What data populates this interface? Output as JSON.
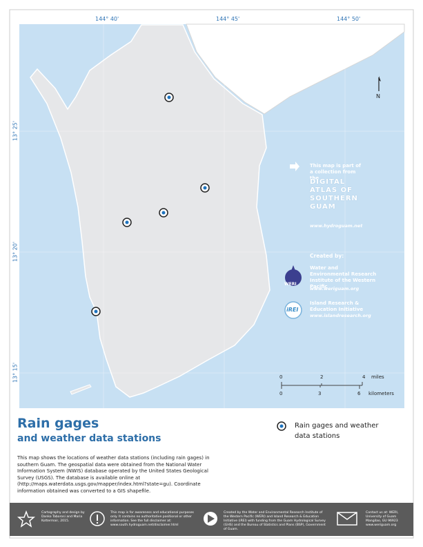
{
  "map": {
    "top_labels": [
      "144° 40'",
      "144° 45'",
      "144° 50'"
    ],
    "left_labels": [
      "13° 25'",
      "13° 20'",
      "13° 15'"
    ],
    "north": "N"
  },
  "collection": {
    "intro": "This map is part of a collection from the",
    "atlas_lines": [
      "DIGITAL",
      "ATLAS OF",
      "SOUTHERN",
      "GUAM"
    ],
    "url": "www.hydroguam.net"
  },
  "credits": {
    "heading": "Created by:",
    "orgs": [
      {
        "logo": "WERI",
        "name": "Water and Environmental Research Institute of the Western Pacific",
        "url": "www.weriguam.org"
      },
      {
        "logo": "iREI",
        "name": "Island Research & Education Initiative",
        "url": "www.islandresearch.org"
      }
    ]
  },
  "scale": {
    "miles": [
      "0",
      "2",
      "4"
    ],
    "miles_unit": "miles",
    "km": [
      "0",
      "3",
      "6"
    ],
    "km_unit": "kilometers"
  },
  "title": "Rain gages",
  "subtitle": "and weather data stations",
  "legend": "Rain gages and weather data stations",
  "description": "This map shows the locations of weather data stations (including rain gages) in southern Guam. The geospatial data were obtained from the National Water Information System (NWIS) database operated by the United States Geological Survey (USGS). The database is available online at (http://maps.waterdata.usgs.gov/mapper/index.html?state=gu). Coordinate information obtained was converted to a GIS shapefile.",
  "footer": [
    "Cartography and design by Danko Taborosi and Maria Kottermair, 2015.",
    "This map is for awareness and educational purposes only. It contains no authoritative positional or other information. See the full disclaimer at: www.south.hydroguam.net/disclaimer.html",
    "Created by the Water and Environmental Research Institute of the Western Pacific (WERI) and Island Research & Education Initiative (iREI) with funding from the Guam Hydrological Survey (GHS) and the Bureau of Statistics and Plans (BSP), Government of Guam.",
    "Contact us at: WERI, University of Guam Mangilao, GU 96923 www.weriguam.org"
  ]
}
